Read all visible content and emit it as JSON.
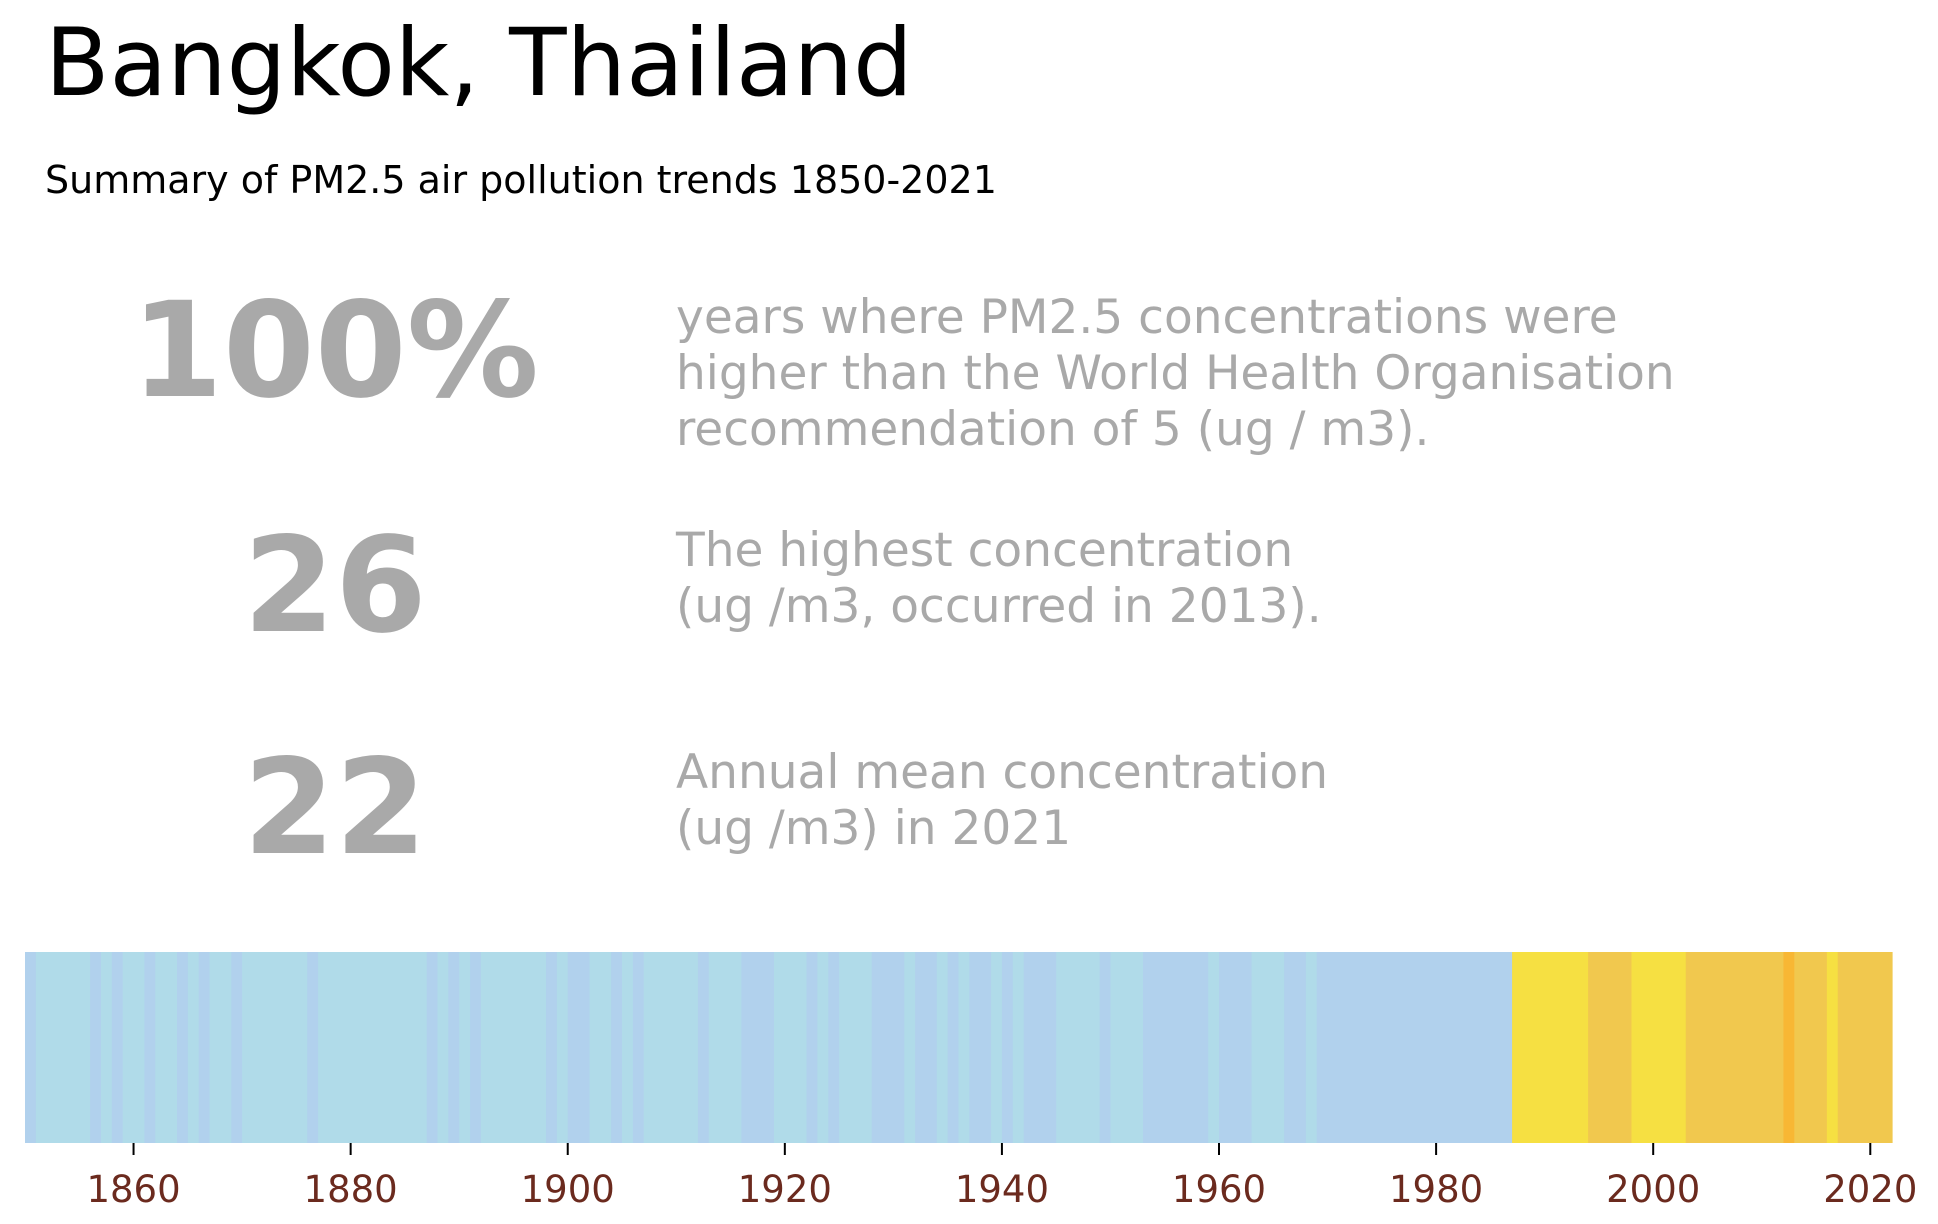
{
  "header": {
    "title": "Bangkok, Thailand",
    "subtitle": "Summary of PM2.5 air pollution trends 1850-2021"
  },
  "stats": [
    {
      "value": "100%",
      "description": [
        "years where PM2.5 concentrations were",
        "higher than the World Health Organisation",
        "recommendation of 5 (ug / m3)."
      ]
    },
    {
      "value": "26",
      "description": [
        "The highest concentration",
        "(ug /m3, occurred in 2013)."
      ]
    },
    {
      "value": "22",
      "description": [
        "Annual mean concentration",
        "(ug /m3) in 2021"
      ]
    }
  ],
  "chart_data": {
    "type": "heatmap",
    "description_note": "",
    "x_ticks": [
      "1860",
      "1880",
      "1900",
      "1920",
      "1940",
      "1960",
      "1980",
      "2000",
      "2020"
    ],
    "xlim": [
      1850,
      2022
    ],
    "colors": {
      "band1": "#b0dbe9",
      "band2": "#b1d1ed",
      "band3": "#f6e042",
      "band4": "#f1c84e",
      "band5": "#f8b734",
      "tick_label": "#6b2a1e"
    },
    "segments": [
      {
        "start": 1850,
        "end": 1851,
        "band": "band2"
      },
      {
        "start": 1851,
        "end": 1852,
        "band": "band1"
      },
      {
        "start": 1852,
        "end": 1856,
        "band": "band1"
      },
      {
        "start": 1856,
        "end": 1857,
        "band": "band2"
      },
      {
        "start": 1857,
        "end": 1858,
        "band": "band1"
      },
      {
        "start": 1858,
        "end": 1859,
        "band": "band2"
      },
      {
        "start": 1859,
        "end": 1861,
        "band": "band1"
      },
      {
        "start": 1861,
        "end": 1862,
        "band": "band2"
      },
      {
        "start": 1862,
        "end": 1864,
        "band": "band1"
      },
      {
        "start": 1864,
        "end": 1865,
        "band": "band2"
      },
      {
        "start": 1865,
        "end": 1866,
        "band": "band1"
      },
      {
        "start": 1866,
        "end": 1867,
        "band": "band2"
      },
      {
        "start": 1867,
        "end": 1869,
        "band": "band1"
      },
      {
        "start": 1869,
        "end": 1870,
        "band": "band2"
      },
      {
        "start": 1870,
        "end": 1876,
        "band": "band1"
      },
      {
        "start": 1876,
        "end": 1877,
        "band": "band2"
      },
      {
        "start": 1877,
        "end": 1887,
        "band": "band1"
      },
      {
        "start": 1887,
        "end": 1888,
        "band": "band2"
      },
      {
        "start": 1888,
        "end": 1889,
        "band": "band1"
      },
      {
        "start": 1889,
        "end": 1890,
        "band": "band2"
      },
      {
        "start": 1890,
        "end": 1891,
        "band": "band1"
      },
      {
        "start": 1891,
        "end": 1892,
        "band": "band2"
      },
      {
        "start": 1892,
        "end": 1898,
        "band": "band1"
      },
      {
        "start": 1898,
        "end": 1899,
        "band": "band2"
      },
      {
        "start": 1899,
        "end": 1900,
        "band": "band1"
      },
      {
        "start": 1900,
        "end": 1902,
        "band": "band2"
      },
      {
        "start": 1902,
        "end": 1904,
        "band": "band1"
      },
      {
        "start": 1904,
        "end": 1905,
        "band": "band2"
      },
      {
        "start": 1905,
        "end": 1906,
        "band": "band1"
      },
      {
        "start": 1906,
        "end": 1907,
        "band": "band2"
      },
      {
        "start": 1907,
        "end": 1912,
        "band": "band1"
      },
      {
        "start": 1912,
        "end": 1913,
        "band": "band2"
      },
      {
        "start": 1913,
        "end": 1916,
        "band": "band1"
      },
      {
        "start": 1916,
        "end": 1919,
        "band": "band2"
      },
      {
        "start": 1919,
        "end": 1922,
        "band": "band1"
      },
      {
        "start": 1922,
        "end": 1923,
        "band": "band2"
      },
      {
        "start": 1923,
        "end": 1924,
        "band": "band1"
      },
      {
        "start": 1924,
        "end": 1925,
        "band": "band2"
      },
      {
        "start": 1925,
        "end": 1928,
        "band": "band1"
      },
      {
        "start": 1928,
        "end": 1931,
        "band": "band2"
      },
      {
        "start": 1931,
        "end": 1932,
        "band": "band1"
      },
      {
        "start": 1932,
        "end": 1934,
        "band": "band2"
      },
      {
        "start": 1934,
        "end": 1935,
        "band": "band1"
      },
      {
        "start": 1935,
        "end": 1936,
        "band": "band2"
      },
      {
        "start": 1936,
        "end": 1937,
        "band": "band1"
      },
      {
        "start": 1937,
        "end": 1939,
        "band": "band2"
      },
      {
        "start": 1939,
        "end": 1940,
        "band": "band1"
      },
      {
        "start": 1940,
        "end": 1941,
        "band": "band2"
      },
      {
        "start": 1941,
        "end": 1942,
        "band": "band1"
      },
      {
        "start": 1942,
        "end": 1945,
        "band": "band2"
      },
      {
        "start": 1945,
        "end": 1949,
        "band": "band1"
      },
      {
        "start": 1949,
        "end": 1950,
        "band": "band2"
      },
      {
        "start": 1950,
        "end": 1953,
        "band": "band1"
      },
      {
        "start": 1953,
        "end": 1959,
        "band": "band2"
      },
      {
        "start": 1959,
        "end": 1960,
        "band": "band1"
      },
      {
        "start": 1960,
        "end": 1963,
        "band": "band2"
      },
      {
        "start": 1963,
        "end": 1966,
        "band": "band1"
      },
      {
        "start": 1966,
        "end": 1968,
        "band": "band2"
      },
      {
        "start": 1968,
        "end": 1969,
        "band": "band1"
      },
      {
        "start": 1969,
        "end": 1987,
        "band": "band2"
      },
      {
        "start": 1987,
        "end": 1994,
        "band": "band3"
      },
      {
        "start": 1994,
        "end": 1998,
        "band": "band4"
      },
      {
        "start": 1998,
        "end": 2003,
        "band": "band3"
      },
      {
        "start": 2003,
        "end": 2012,
        "band": "band4"
      },
      {
        "start": 2012,
        "end": 2013,
        "band": "band5"
      },
      {
        "start": 2013,
        "end": 2016,
        "band": "band4"
      },
      {
        "start": 2016,
        "end": 2017,
        "band": "band3"
      },
      {
        "start": 2017,
        "end": 2022,
        "band": "band4"
      }
    ]
  }
}
